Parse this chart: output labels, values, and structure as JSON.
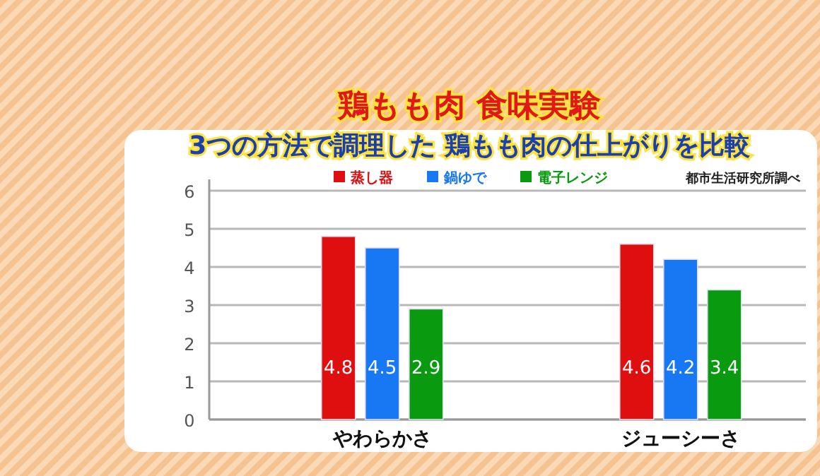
{
  "chart_data": {
    "type": "bar",
    "title": "鶏もも肉 食味実験",
    "subtitle": "3つの方法で調理した 鶏もも肉の仕上がりを比較",
    "categories": [
      "やわらかさ",
      "ジューシーさ"
    ],
    "series": [
      {
        "name": "蒸し器",
        "color": "#e00f0f",
        "values": [
          4.8,
          4.6
        ]
      },
      {
        "name": "鍋ゆで",
        "color": "#1877f2",
        "values": [
          4.5,
          4.2
        ]
      },
      {
        "name": "電子レンジ",
        "color": "#0a9a10",
        "values": [
          2.9,
          3.4
        ]
      }
    ],
    "ylim": [
      0,
      6
    ],
    "yticks": [
      0,
      1,
      2,
      3,
      4,
      5,
      6
    ],
    "grid": "y",
    "legend": "top",
    "data_labels": true,
    "annotations": [
      "都市生活研究所調べ"
    ]
  }
}
